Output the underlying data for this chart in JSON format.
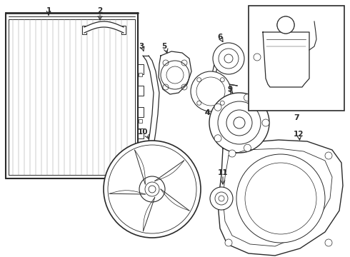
{
  "bg_color": "#ffffff",
  "line_color": "#2a2a2a",
  "lw": 0.9,
  "fig_w": 4.9,
  "fig_h": 3.6,
  "dpi": 100
}
